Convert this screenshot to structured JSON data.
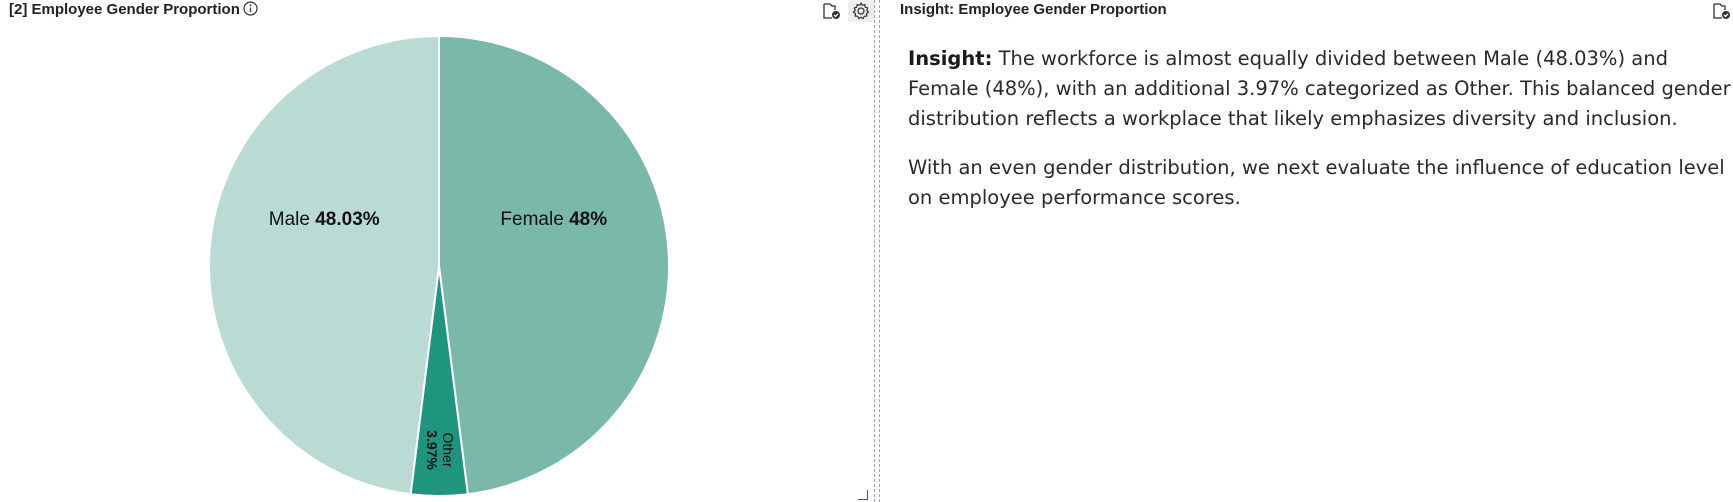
{
  "left_panel": {
    "title": "[2] Employee Gender Proportion",
    "info_icon": "info-circle-icon",
    "tools": [
      "folder-check-icon",
      "gear-icon"
    ]
  },
  "right_panel": {
    "title": "Insight: Employee Gender Proportion",
    "tools": [
      "folder-check-icon"
    ],
    "insight_label": "Insight:",
    "insight_text": "The workforce is almost equally divided between Male (48.03%) and Female (48%), with an additional 3.97% categorized as Other. This balanced gender distribution reflects a workplace that likely emphasizes diversity and inclusion.",
    "followup_text": "With an even gender distribution, we next evaluate the influence of education level on employee performance scores."
  },
  "chart_data": {
    "type": "pie",
    "title": "",
    "slices": [
      {
        "label": "Female",
        "value_label": "48%",
        "value": 48.0,
        "color": "#7ab8aa"
      },
      {
        "label": "Other",
        "value_label": "3.97%",
        "value": 3.97,
        "color": "#1f9580"
      },
      {
        "label": "Male",
        "value_label": "48.03%",
        "value": 48.03,
        "color": "#badbd4"
      }
    ],
    "start": "top",
    "direction": "clockwise",
    "legend": "none"
  }
}
